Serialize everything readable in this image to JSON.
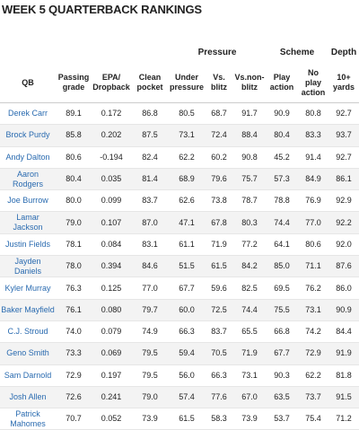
{
  "header": {
    "title": "WEEK 5 QUARTERBACK RANKINGS"
  },
  "table": {
    "groups": [
      {
        "label": "Pressure",
        "span": 3,
        "start": 4
      },
      {
        "label": "Scheme",
        "span": 2,
        "start": 7
      },
      {
        "label": "Depth",
        "span": 1,
        "start": 9
      }
    ],
    "columns": [
      "QB",
      "Passing grade",
      "EPA/ Dropback",
      "Clean pocket",
      "Under pressure",
      "Vs. blitz",
      "Vs.non-blitz",
      "Play action",
      "No play action",
      "10+ yards"
    ],
    "rows": [
      [
        "Derek Carr",
        "89.1",
        "0.172",
        "86.8",
        "80.5",
        "68.7",
        "91.7",
        "90.9",
        "80.8",
        "92.7"
      ],
      [
        "Brock Purdy",
        "85.8",
        "0.202",
        "87.5",
        "73.1",
        "72.4",
        "88.4",
        "80.4",
        "83.3",
        "93.7"
      ],
      [
        "Andy Dalton",
        "80.6",
        "-0.194",
        "82.4",
        "62.2",
        "60.2",
        "90.8",
        "45.2",
        "91.4",
        "92.7"
      ],
      [
        "Aaron Rodgers",
        "80.4",
        "0.035",
        "81.4",
        "68.9",
        "79.6",
        "75.7",
        "57.3",
        "84.9",
        "86.1"
      ],
      [
        "Joe Burrow",
        "80.0",
        "0.099",
        "83.7",
        "62.6",
        "73.8",
        "78.7",
        "78.8",
        "76.9",
        "92.9"
      ],
      [
        "Lamar Jackson",
        "79.0",
        "0.107",
        "87.0",
        "47.1",
        "67.8",
        "80.3",
        "74.4",
        "77.0",
        "92.2"
      ],
      [
        "Justin Fields",
        "78.1",
        "0.084",
        "83.1",
        "61.1",
        "71.9",
        "77.2",
        "64.1",
        "80.6",
        "92.0"
      ],
      [
        "Jayden Daniels",
        "78.0",
        "0.394",
        "84.6",
        "51.5",
        "61.5",
        "84.2",
        "85.0",
        "71.1",
        "87.6"
      ],
      [
        "Kyler Murray",
        "76.3",
        "0.125",
        "77.0",
        "67.7",
        "59.6",
        "82.5",
        "69.5",
        "76.2",
        "86.0"
      ],
      [
        "Baker Mayfield",
        "76.1",
        "0.080",
        "79.7",
        "60.0",
        "72.5",
        "74.4",
        "75.5",
        "73.1",
        "90.9"
      ],
      [
        "C.J. Stroud",
        "74.0",
        "0.079",
        "74.9",
        "66.3",
        "83.7",
        "65.5",
        "66.8",
        "74.2",
        "84.4"
      ],
      [
        "Geno Smith",
        "73.3",
        "0.069",
        "79.5",
        "59.4",
        "70.5",
        "71.9",
        "67.7",
        "72.9",
        "91.9"
      ],
      [
        "Sam Darnold",
        "72.9",
        "0.197",
        "79.5",
        "56.0",
        "66.3",
        "73.1",
        "90.3",
        "62.2",
        "81.8"
      ],
      [
        "Josh Allen",
        "72.6",
        "0.241",
        "79.0",
        "57.4",
        "77.6",
        "67.0",
        "63.5",
        "73.7",
        "91.5"
      ],
      [
        "Patrick Mahomes",
        "70.7",
        "0.052",
        "73.9",
        "61.5",
        "58.3",
        "73.9",
        "53.7",
        "75.4",
        "71.2"
      ]
    ]
  }
}
